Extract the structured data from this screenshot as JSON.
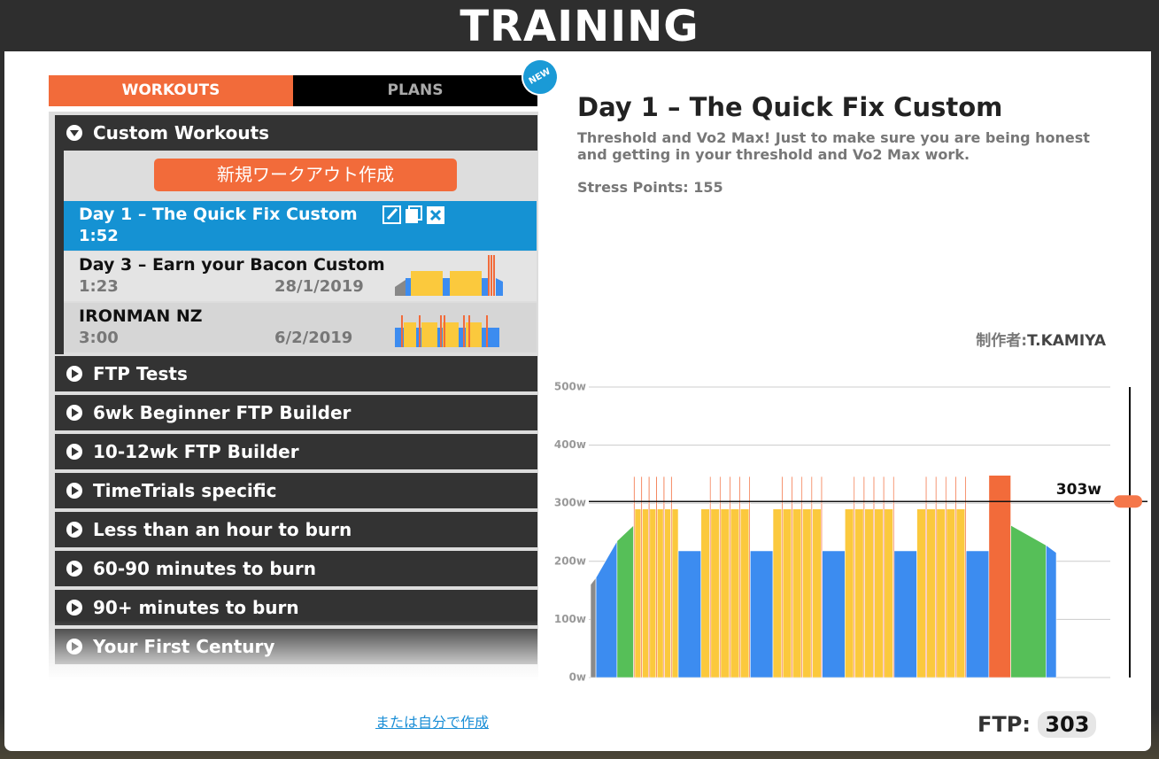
{
  "header": {
    "title": "TRAINING"
  },
  "tabs": {
    "workouts": "WORKOUTS",
    "plans": "PLANS",
    "badge": "NEW"
  },
  "custom": {
    "name": "Custom Workouts",
    "new_button": "新規ワークアウト作成",
    "workouts": [
      {
        "name": "Day 1 – The Quick Fix Custom",
        "time": "1:52"
      },
      {
        "name": "Day 3 – Earn your Bacon Custom",
        "time": "1:23",
        "date": "28/1/2019"
      },
      {
        "name": "IRONMAN NZ",
        "time": "3:00",
        "date": "6/2/2019"
      }
    ]
  },
  "categories": [
    "FTP Tests",
    "6wk Beginner FTP Builder",
    "10-12wk FTP Builder",
    "TimeTrials specific",
    "Less than an hour to burn",
    "60-90 minutes to burn",
    "90+ minutes to burn",
    "Your First Century"
  ],
  "create_link": "または自分で作成",
  "detail": {
    "title": "Day 1 – The Quick Fix Custom",
    "description": "Threshold and Vo2 Max! Just to make sure you are being honest and getting in your threshold and Vo2 Max work.",
    "stress_label": "Stress Points:",
    "stress_points": 155,
    "author_label": "制作者:",
    "author": "T.KAMIYA"
  },
  "chart_data": {
    "type": "workout",
    "ylim": [
      0,
      500
    ],
    "yticks": [
      {
        "value": 0,
        "label": "0w"
      },
      {
        "value": 100,
        "label": "100w"
      },
      {
        "value": 200,
        "label": "200w"
      },
      {
        "value": 300,
        "label": "300w"
      },
      {
        "value": 400,
        "label": "400w"
      },
      {
        "value": 500,
        "label": "500w"
      }
    ],
    "grid": true,
    "ftp_marker": {
      "value": 303,
      "label": "303w"
    },
    "segments": [
      [
        1.3,
        160,
        172,
        "#8a8a8a"
      ],
      [
        5.1,
        172,
        235,
        "#3c8cf0"
      ],
      [
        4,
        235,
        262,
        "#56bf58"
      ],
      [
        0.3,
        346,
        346,
        "#f26b3a"
      ],
      [
        1.5,
        290,
        290,
        "#fbc93d"
      ],
      [
        0.3,
        346,
        346,
        "#f26b3a"
      ],
      [
        1.5,
        290,
        290,
        "#fbc93d"
      ],
      [
        0.3,
        346,
        346,
        "#f26b3a"
      ],
      [
        1.5,
        290,
        290,
        "#fbc93d"
      ],
      [
        0.3,
        346,
        346,
        "#f26b3a"
      ],
      [
        1.5,
        290,
        290,
        "#fbc93d"
      ],
      [
        0.3,
        346,
        346,
        "#f26b3a"
      ],
      [
        1.5,
        290,
        290,
        "#fbc93d"
      ],
      [
        0.3,
        346,
        346,
        "#f26b3a"
      ],
      [
        1.5,
        290,
        290,
        "#fbc93d"
      ],
      [
        5.5,
        218,
        218,
        "#3c8cf0"
      ],
      [
        2.1,
        290,
        290,
        "#fbc93d"
      ],
      [
        0.28,
        346,
        346,
        "#f26b3a"
      ],
      [
        2.1,
        290,
        290,
        "#fbc93d"
      ],
      [
        0.28,
        346,
        346,
        "#f26b3a"
      ],
      [
        2.1,
        290,
        290,
        "#fbc93d"
      ],
      [
        0.28,
        346,
        346,
        "#f26b3a"
      ],
      [
        2.1,
        290,
        290,
        "#fbc93d"
      ],
      [
        0.28,
        346,
        346,
        "#f26b3a"
      ],
      [
        2.1,
        290,
        290,
        "#fbc93d"
      ],
      [
        0.28,
        346,
        346,
        "#f26b3a"
      ],
      [
        5.5,
        218,
        218,
        "#3c8cf0"
      ],
      [
        2.1,
        290,
        290,
        "#fbc93d"
      ],
      [
        0.28,
        346,
        346,
        "#f26b3a"
      ],
      [
        2.1,
        290,
        290,
        "#fbc93d"
      ],
      [
        0.28,
        346,
        346,
        "#f26b3a"
      ],
      [
        2.1,
        290,
        290,
        "#fbc93d"
      ],
      [
        0.28,
        346,
        346,
        "#f26b3a"
      ],
      [
        2.1,
        290,
        290,
        "#fbc93d"
      ],
      [
        0.28,
        346,
        346,
        "#f26b3a"
      ],
      [
        2.1,
        290,
        290,
        "#fbc93d"
      ],
      [
        0.28,
        346,
        346,
        "#f26b3a"
      ],
      [
        5.5,
        218,
        218,
        "#3c8cf0"
      ],
      [
        2.1,
        290,
        290,
        "#fbc93d"
      ],
      [
        0.28,
        346,
        346,
        "#f26b3a"
      ],
      [
        2.1,
        290,
        290,
        "#fbc93d"
      ],
      [
        0.28,
        346,
        346,
        "#f26b3a"
      ],
      [
        2.1,
        290,
        290,
        "#fbc93d"
      ],
      [
        0.28,
        346,
        346,
        "#f26b3a"
      ],
      [
        2.1,
        290,
        290,
        "#fbc93d"
      ],
      [
        0.28,
        346,
        346,
        "#f26b3a"
      ],
      [
        2.1,
        290,
        290,
        "#fbc93d"
      ],
      [
        0.28,
        346,
        346,
        "#f26b3a"
      ],
      [
        5.5,
        218,
        218,
        "#3c8cf0"
      ],
      [
        2.1,
        290,
        290,
        "#fbc93d"
      ],
      [
        0.28,
        346,
        346,
        "#f26b3a"
      ],
      [
        2.1,
        290,
        290,
        "#fbc93d"
      ],
      [
        0.28,
        346,
        346,
        "#f26b3a"
      ],
      [
        2.1,
        290,
        290,
        "#fbc93d"
      ],
      [
        0.28,
        346,
        346,
        "#f26b3a"
      ],
      [
        2.1,
        290,
        290,
        "#fbc93d"
      ],
      [
        0.28,
        346,
        346,
        "#f26b3a"
      ],
      [
        2.1,
        290,
        290,
        "#fbc93d"
      ],
      [
        0.28,
        346,
        346,
        "#f26b3a"
      ],
      [
        5.5,
        218,
        218,
        "#3c8cf0"
      ],
      [
        5.3,
        348,
        348,
        "#f26b3a"
      ],
      [
        8.5,
        262,
        228,
        "#56bf58"
      ],
      [
        2.5,
        228,
        215,
        "#3c8cf0"
      ]
    ]
  },
  "ftp": {
    "label": "FTP:",
    "value": 303
  }
}
